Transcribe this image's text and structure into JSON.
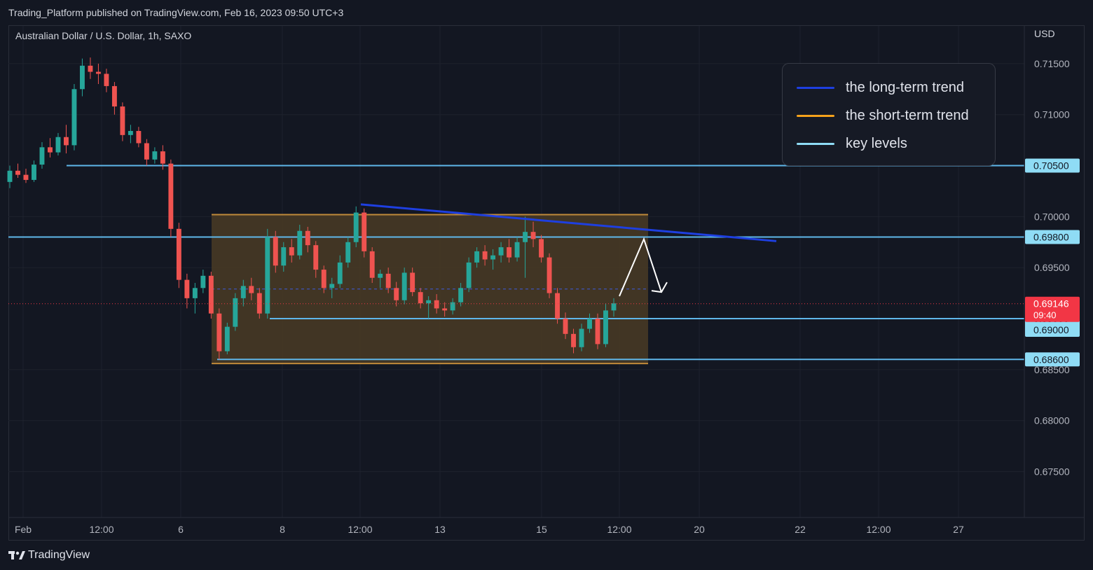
{
  "header": {
    "published_line": "Trading_Platform published on TradingView.com, Feb 16, 2023 09:50 UTC+3",
    "symbol_line": "Australian Dollar / U.S. Dollar, 1h, SAXO",
    "currency": "USD"
  },
  "legend": [
    {
      "label": "the long-term trend",
      "color": "#1e3fe0"
    },
    {
      "label": "the short-term trend",
      "color": "#f5a21b"
    },
    {
      "label": "key levels",
      "color": "#8fdcf5"
    }
  ],
  "footer": {
    "brand": "TradingView"
  },
  "colors": {
    "up": "#26a69a",
    "down": "#ef5350",
    "key_level": "#5fb7ea",
    "trend": "#1e3fe0",
    "range_fill": "#4a3b25",
    "range_border": "#c08a3a",
    "current_price": "#f23645",
    "level_label_bg": "#8fdcf5",
    "level_label_text": "#131722"
  },
  "chart_data": {
    "type": "candlestick",
    "x_axis": {
      "tick_labels": [
        "Feb",
        "12:00",
        "6",
        "8",
        "12:00",
        "13",
        "15",
        "12:00",
        "20",
        "22",
        "12:00",
        "27"
      ]
    },
    "y_axis": {
      "tick_labels": [
        "0.71500",
        "0.71000",
        "0.70000",
        "0.69500",
        "0.68500",
        "0.68000",
        "0.67500"
      ],
      "ticks": [
        0.715,
        0.71,
        0.7,
        0.695,
        0.685,
        0.68,
        0.675
      ],
      "range": [
        0.6705,
        0.7187
      ]
    },
    "grid": true,
    "key_levels": [
      {
        "value": 0.705,
        "label": "0.70500"
      },
      {
        "value": 0.698,
        "label": "0.69800"
      },
      {
        "value": 0.69,
        "label": "0.69000"
      },
      {
        "value": 0.686,
        "label": "0.68600"
      }
    ],
    "current_price": {
      "value": 0.69146,
      "label": "0.69146",
      "countdown": "09:40"
    },
    "range_zone": {
      "top": 0.7002,
      "bottom": 0.6856
    },
    "long_term_trendline": {
      "start": 0.7012,
      "end": 0.6976
    },
    "projection": {
      "points": [
        0.6922,
        0.6978,
        0.6926
      ]
    },
    "candles": [
      [
        0.7034,
        0.705,
        0.7028,
        0.7045
      ],
      [
        0.7045,
        0.7052,
        0.7038,
        0.7041
      ],
      [
        0.7041,
        0.7047,
        0.7033,
        0.7036
      ],
      [
        0.7036,
        0.7055,
        0.7034,
        0.7051
      ],
      [
        0.7051,
        0.7073,
        0.7047,
        0.7068
      ],
      [
        0.7068,
        0.7077,
        0.7058,
        0.7063
      ],
      [
        0.7063,
        0.7082,
        0.706,
        0.7078
      ],
      [
        0.7078,
        0.709,
        0.7062,
        0.707
      ],
      [
        0.707,
        0.713,
        0.7065,
        0.7125
      ],
      [
        0.7125,
        0.7155,
        0.7118,
        0.7148
      ],
      [
        0.7148,
        0.7156,
        0.7135,
        0.7142
      ],
      [
        0.7142,
        0.715,
        0.713,
        0.714
      ],
      [
        0.714,
        0.7145,
        0.7122,
        0.7128
      ],
      [
        0.7128,
        0.7132,
        0.71,
        0.7108
      ],
      [
        0.7108,
        0.7112,
        0.7074,
        0.708
      ],
      [
        0.708,
        0.709,
        0.7072,
        0.7084
      ],
      [
        0.7084,
        0.7088,
        0.7068,
        0.7072
      ],
      [
        0.7072,
        0.7076,
        0.705,
        0.7056
      ],
      [
        0.7056,
        0.7068,
        0.7052,
        0.7064
      ],
      [
        0.7064,
        0.707,
        0.7046,
        0.7052
      ],
      [
        0.7052,
        0.7056,
        0.698,
        0.6988
      ],
      [
        0.6988,
        0.6994,
        0.693,
        0.6938
      ],
      [
        0.6938,
        0.6944,
        0.691,
        0.692
      ],
      [
        0.692,
        0.6935,
        0.6905,
        0.693
      ],
      [
        0.693,
        0.6948,
        0.6925,
        0.6942
      ],
      [
        0.6942,
        0.6946,
        0.69,
        0.6905
      ],
      [
        0.6905,
        0.691,
        0.686,
        0.6868
      ],
      [
        0.6868,
        0.6896,
        0.6865,
        0.6892
      ],
      [
        0.6892,
        0.6925,
        0.6888,
        0.692
      ],
      [
        0.692,
        0.6938,
        0.6912,
        0.6932
      ],
      [
        0.6932,
        0.694,
        0.6918,
        0.6925
      ],
      [
        0.6925,
        0.693,
        0.69,
        0.6905
      ],
      [
        0.6905,
        0.6988,
        0.69,
        0.698
      ],
      [
        0.698,
        0.6986,
        0.6945,
        0.6952
      ],
      [
        0.6952,
        0.6975,
        0.6946,
        0.697
      ],
      [
        0.697,
        0.6978,
        0.6955,
        0.6962
      ],
      [
        0.6962,
        0.6992,
        0.6958,
        0.6986
      ],
      [
        0.6986,
        0.699,
        0.6965,
        0.6972
      ],
      [
        0.6972,
        0.6976,
        0.694,
        0.6948
      ],
      [
        0.6948,
        0.6952,
        0.6925,
        0.693
      ],
      [
        0.693,
        0.694,
        0.692,
        0.6934
      ],
      [
        0.6934,
        0.6962,
        0.693,
        0.6955
      ],
      [
        0.6955,
        0.698,
        0.695,
        0.6975
      ],
      [
        0.6975,
        0.701,
        0.697,
        0.7004
      ],
      [
        0.7004,
        0.7008,
        0.696,
        0.6966
      ],
      [
        0.6966,
        0.697,
        0.6935,
        0.694
      ],
      [
        0.694,
        0.6948,
        0.693,
        0.6944
      ],
      [
        0.6944,
        0.695,
        0.6925,
        0.693
      ],
      [
        0.693,
        0.6936,
        0.6912,
        0.6918
      ],
      [
        0.6918,
        0.695,
        0.6914,
        0.6945
      ],
      [
        0.6945,
        0.695,
        0.6922,
        0.6926
      ],
      [
        0.6926,
        0.693,
        0.691,
        0.6915
      ],
      [
        0.6915,
        0.6922,
        0.69,
        0.6918
      ],
      [
        0.6918,
        0.6924,
        0.6905,
        0.691
      ],
      [
        0.691,
        0.6916,
        0.6902,
        0.6908
      ],
      [
        0.6908,
        0.692,
        0.6904,
        0.6916
      ],
      [
        0.6916,
        0.6935,
        0.6912,
        0.693
      ],
      [
        0.693,
        0.696,
        0.6926,
        0.6955
      ],
      [
        0.6955,
        0.697,
        0.695,
        0.6966
      ],
      [
        0.6966,
        0.6972,
        0.6952,
        0.6958
      ],
      [
        0.6958,
        0.6968,
        0.6948,
        0.6962
      ],
      [
        0.6962,
        0.6975,
        0.6955,
        0.697
      ],
      [
        0.697,
        0.6978,
        0.6955,
        0.696
      ],
      [
        0.696,
        0.698,
        0.6956,
        0.6975
      ],
      [
        0.6975,
        0.7,
        0.694,
        0.6985
      ],
      [
        0.6985,
        0.6995,
        0.697,
        0.6978
      ],
      [
        0.6978,
        0.6982,
        0.6955,
        0.696
      ],
      [
        0.696,
        0.6964,
        0.692,
        0.6925
      ],
      [
        0.6925,
        0.693,
        0.6895,
        0.69
      ],
      [
        0.69,
        0.6906,
        0.688,
        0.6885
      ],
      [
        0.6885,
        0.689,
        0.6866,
        0.6872
      ],
      [
        0.6872,
        0.6895,
        0.6868,
        0.689
      ],
      [
        0.689,
        0.6905,
        0.6886,
        0.69
      ],
      [
        0.69,
        0.6905,
        0.687,
        0.6875
      ],
      [
        0.6875,
        0.6915,
        0.6872,
        0.6908
      ],
      [
        0.6908,
        0.692,
        0.6902,
        0.6915
      ]
    ]
  }
}
